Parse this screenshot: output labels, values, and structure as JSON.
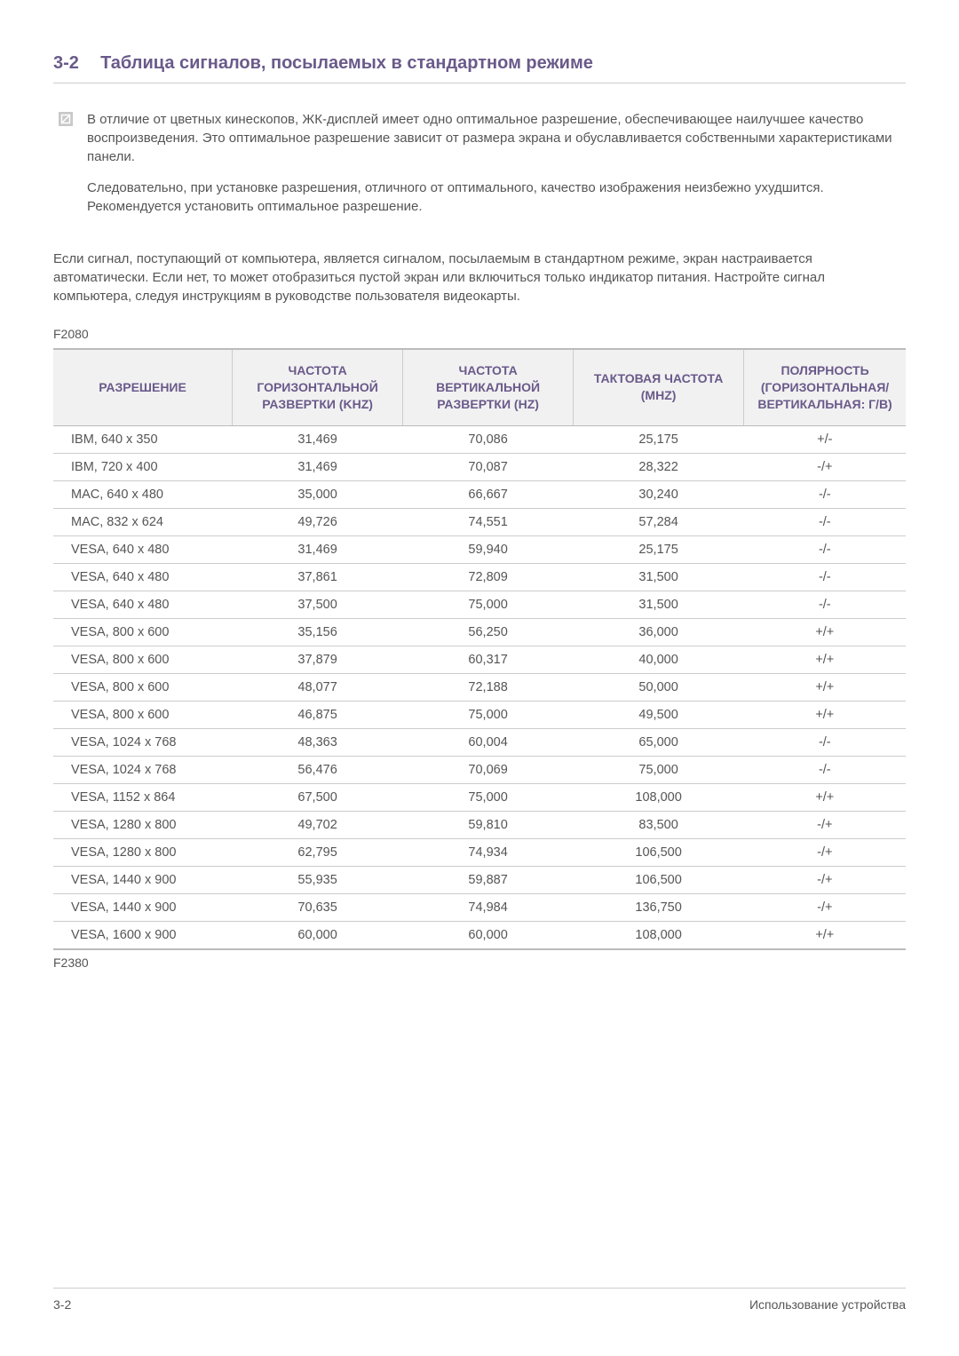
{
  "header": {
    "number": "3-2",
    "title": "Таблица сигналов, посылаемых в стандартном режиме"
  },
  "note": {
    "p1": "В отличие от цветных кинескопов, ЖК-дисплей имеет одно оптимальное разрешение, обеспечивающее наилучшее качество воспроизведения. Это оптимальное разрешение зависит от размера экрана и обуславливается собственными характеристиками панели.",
    "p2": "Следовательно, при установке разрешения, отличного от оптимального, качество изображения неизбежно ухудшится. Рекомендуется установить оптимальное разрешение."
  },
  "body_text": "Если сигнал, поступающий от компьютера, является сигналом, посылаемым в стандартном режиме, экран настраивается автоматически. Если нет, то может отобразиться пустой экран или включиться только индикатор питания. Настройте сигнал компьютера, следуя инструкциям в руководстве пользователя видеокарты.",
  "model1": "F2080",
  "model2": "F2380",
  "table": {
    "columns": [
      "РАЗРЕШЕНИЕ",
      "ЧАСТОТА ГОРИЗОНТАЛЬНОЙ РАЗВЕРТКИ (KHZ)",
      "ЧАСТОТА ВЕРТИКАЛЬНОЙ РАЗВЕРТКИ (HZ)",
      "ТАКТОВАЯ ЧАСТОТА (MHZ)",
      "ПОЛЯРНОСТЬ (ГОРИЗОНТАЛЬНАЯ/ВЕРТИКАЛЬНАЯ: Г/В)"
    ],
    "col_widths": [
      "21%",
      "20%",
      "20%",
      "20%",
      "19%"
    ],
    "rows": [
      [
        "IBM, 640 x 350",
        "31,469",
        "70,086",
        "25,175",
        "+/-"
      ],
      [
        "IBM, 720 x 400",
        "31,469",
        "70,087",
        "28,322",
        "-/+"
      ],
      [
        "MAC, 640 x 480",
        "35,000",
        "66,667",
        "30,240",
        "-/-"
      ],
      [
        "MAC, 832 x 624",
        "49,726",
        "74,551",
        "57,284",
        "-/-"
      ],
      [
        "VESA, 640 x 480",
        "31,469",
        "59,940",
        "25,175",
        "-/-"
      ],
      [
        "VESA, 640 x 480",
        "37,861",
        "72,809",
        "31,500",
        "-/-"
      ],
      [
        "VESA, 640 x 480",
        "37,500",
        "75,000",
        "31,500",
        "-/-"
      ],
      [
        "VESA, 800 x 600",
        "35,156",
        "56,250",
        "36,000",
        "+/+"
      ],
      [
        "VESA, 800 x 600",
        "37,879",
        "60,317",
        "40,000",
        "+/+"
      ],
      [
        "VESA, 800 x 600",
        "48,077",
        "72,188",
        "50,000",
        "+/+"
      ],
      [
        "VESA, 800 x 600",
        "46,875",
        "75,000",
        "49,500",
        "+/+"
      ],
      [
        "VESA, 1024 x 768",
        "48,363",
        "60,004",
        "65,000",
        "-/-"
      ],
      [
        "VESA, 1024 x 768",
        "56,476",
        "70,069",
        "75,000",
        "-/-"
      ],
      [
        "VESA, 1152 x 864",
        "67,500",
        "75,000",
        "108,000",
        "+/+"
      ],
      [
        "VESA, 1280 x 800",
        "49,702",
        "59,810",
        "83,500",
        "-/+"
      ],
      [
        "VESA, 1280 x 800",
        "62,795",
        "74,934",
        "106,500",
        "-/+"
      ],
      [
        "VESA, 1440 x 900",
        "55,935",
        "59,887",
        "106,500",
        "-/+"
      ],
      [
        "VESA, 1440 x 900",
        "70,635",
        "74,984",
        "136,750",
        "-/+"
      ],
      [
        "VESA, 1600 x 900",
        "60,000",
        "60,000",
        "108,000",
        "+/+"
      ]
    ]
  },
  "footer": {
    "left": "3-2",
    "right": "Использование устройства"
  },
  "colors": {
    "heading": "#6a5a8a",
    "text": "#555555",
    "border": "#cccccc",
    "header_bg": "#f1f1f1"
  }
}
